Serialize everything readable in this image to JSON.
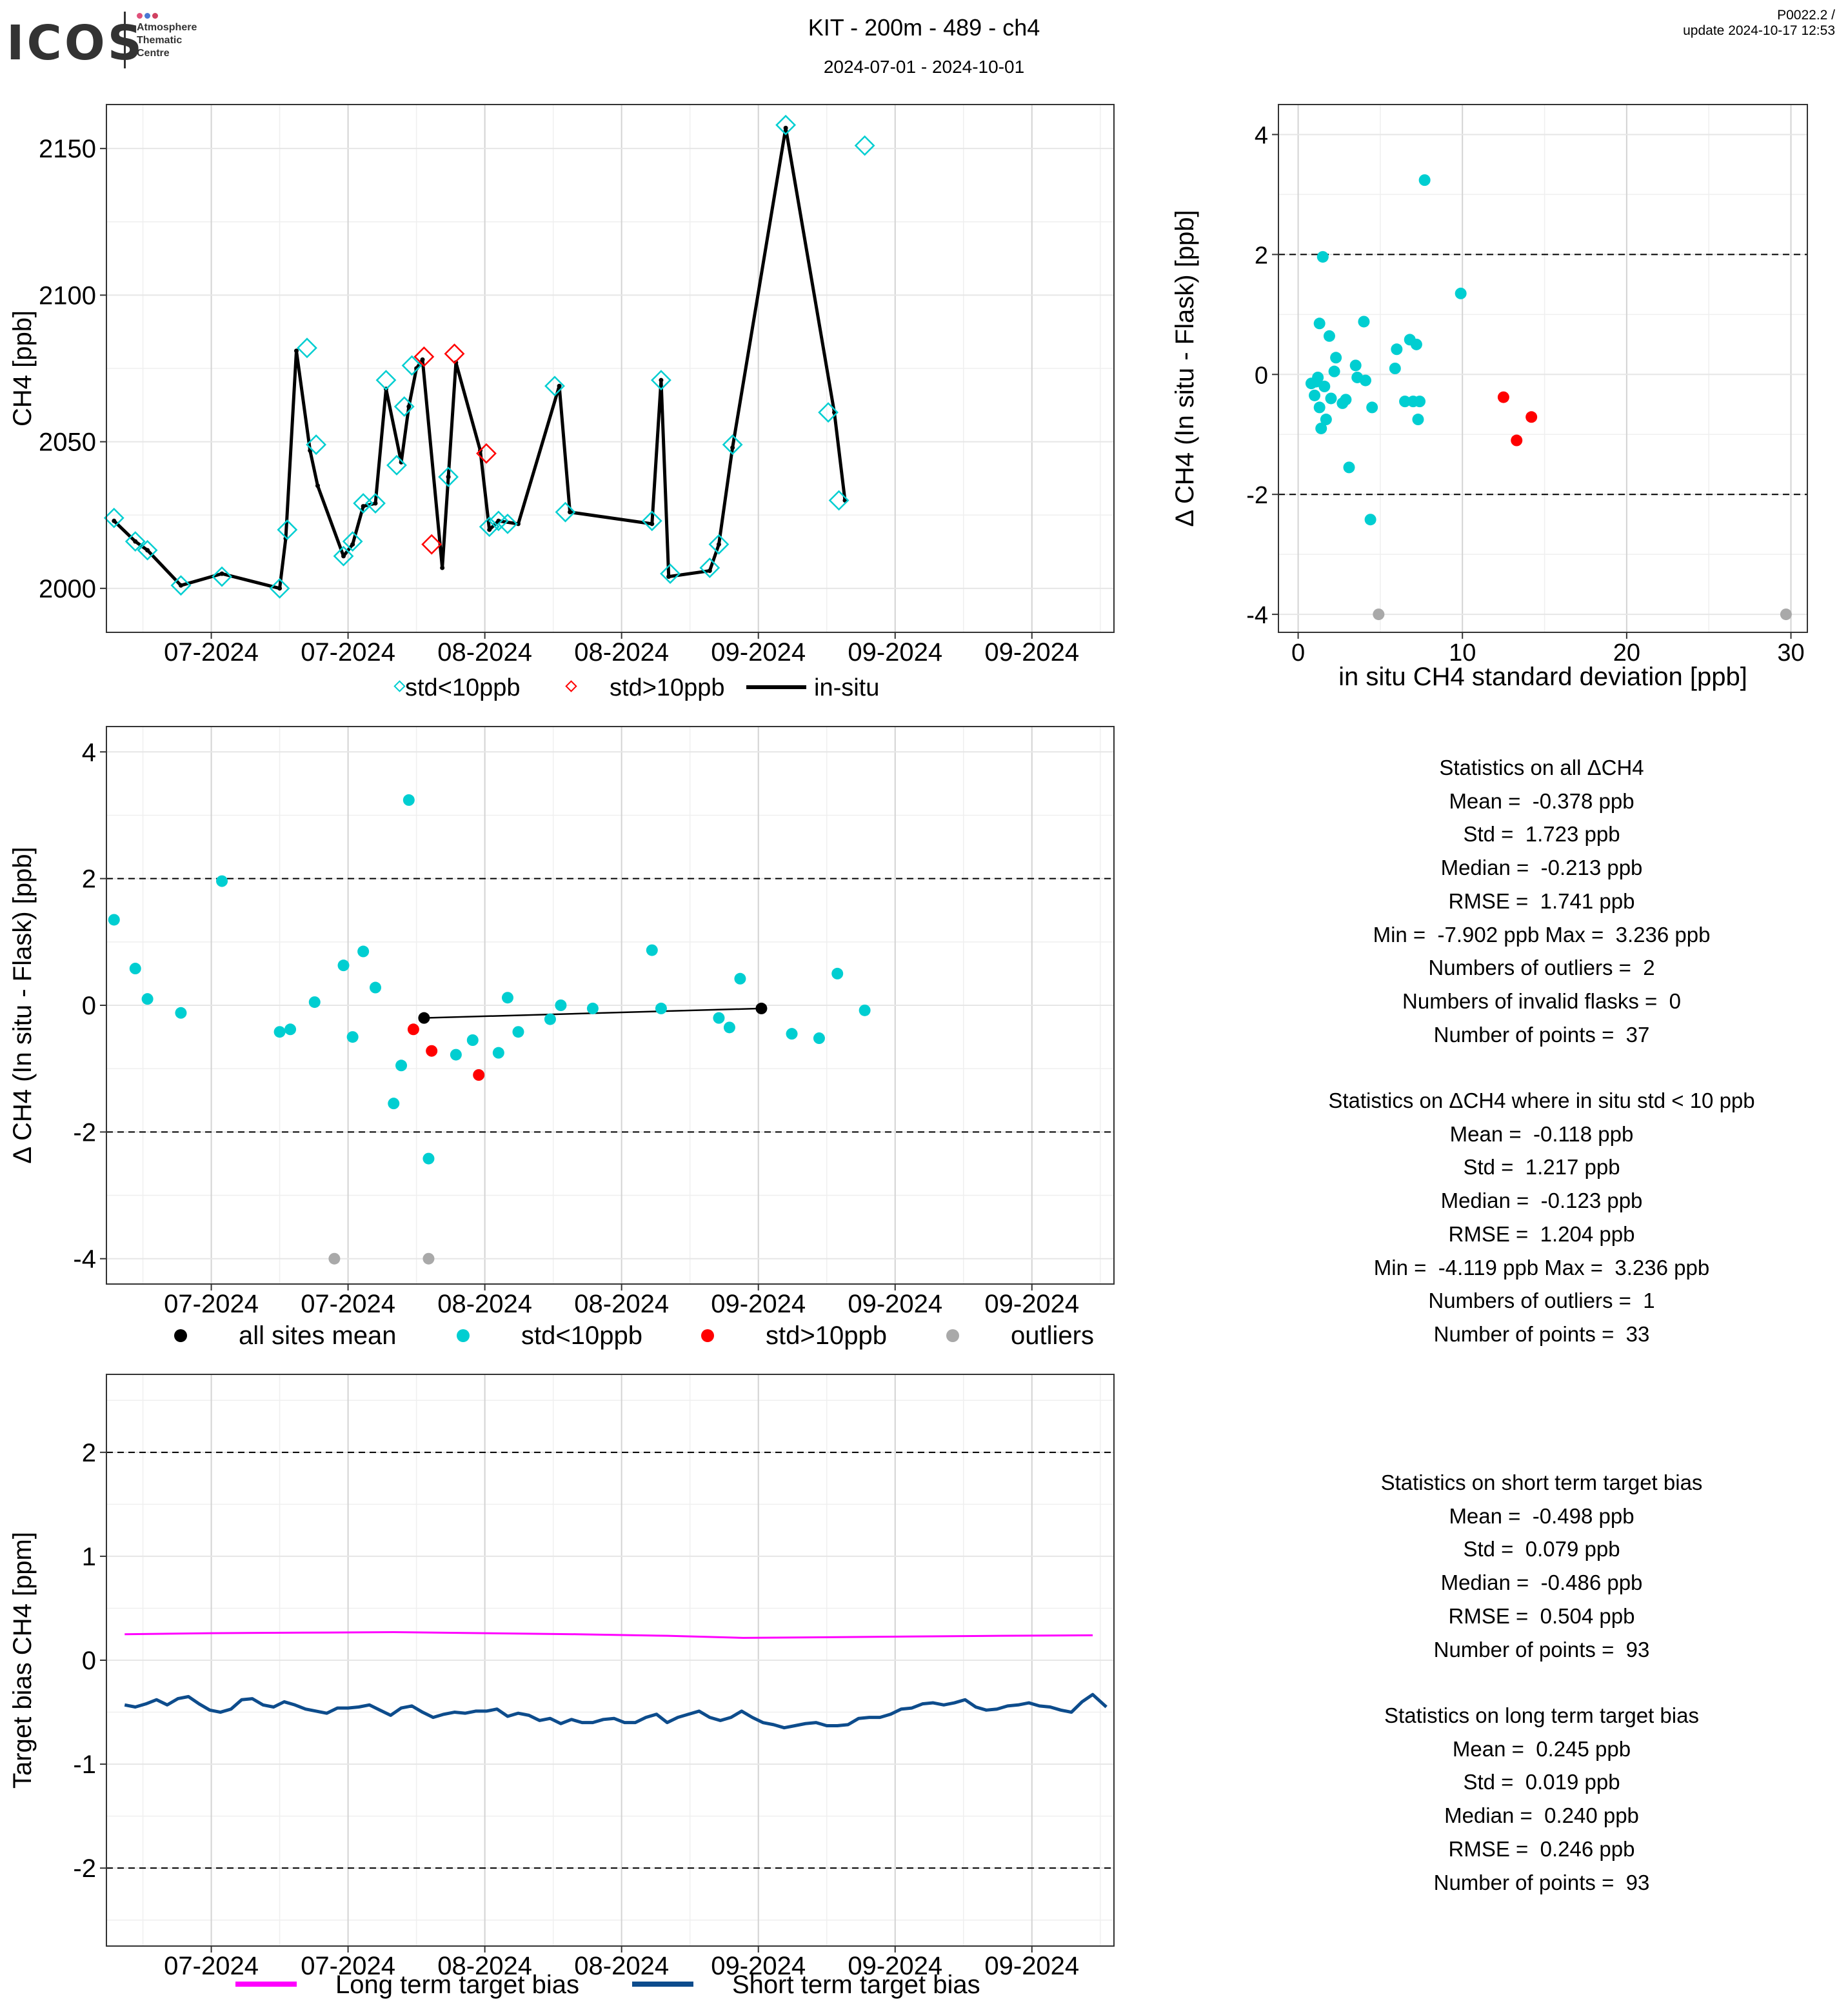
{
  "header": {
    "logo_word": "ICOS",
    "logo_lines": [
      "Atmosphere",
      "Thematic",
      "Centre"
    ],
    "title": "KIT - 200m - 489 - ch4",
    "subtitle": "2024-07-01 - 2024-10-01",
    "version_line1": "P0022.2 /",
    "version_line2": "update  2024-10-17 12:53"
  },
  "colors": {
    "std_lt10": "#00CED1",
    "std_gt10": "#FF0000",
    "outlier": "#A9A9A9",
    "mean": "#000000",
    "long_term": "#FF00FF",
    "short_term": "#0D4C8C",
    "insitu": "#000000"
  },
  "time_axis_labels": [
    "07-2024",
    "07-2024",
    "08-2024",
    "08-2024",
    "09-2024",
    "09-2024",
    "09-2024"
  ],
  "time_axis_labels_bottom": [
    "07-2024",
    "07-2024",
    "08-2024",
    "08-2024",
    "09-2024",
    "09-2024",
    "09-2024"
  ],
  "chart_data": [
    {
      "type": "line",
      "ylabel": "CH4 [ppb]",
      "ylim": [
        1985,
        2165
      ],
      "yticks": [
        2000,
        2050,
        2100,
        2150
      ],
      "x_unit": "days since 2024-07-01",
      "xlim": [
        3.1,
        69.4
      ],
      "grid": true,
      "legend_position": "bottom",
      "legend": [
        "std<10ppb",
        "std>10ppb",
        "in-situ"
      ],
      "series": [
        {
          "name": "in-situ",
          "x": [
            3.6,
            5.0,
            5.8,
            8.0,
            10.7,
            14.5,
            14.9,
            15.6,
            16.5,
            17.0,
            18.7,
            19.3,
            20.0,
            20.8,
            21.5,
            22.5,
            23.0,
            23.5,
            23.9,
            25.2,
            25.6,
            26.1,
            27.7,
            28.3,
            28.9,
            30.2,
            32.9,
            33.6,
            39.0,
            39.6,
            40.1,
            42.8,
            43.4,
            44.3,
            47.8,
            51.0,
            51.7
          ],
          "y": [
            2023,
            2016,
            2013,
            2001,
            2005,
            2000,
            2017,
            2081,
            2047,
            2035,
            2011,
            2015,
            2028,
            2029,
            2068,
            2043,
            2062,
            2075,
            2078,
            2007,
            2038,
            2077,
            2047,
            2020,
            2023,
            2022,
            2069,
            2026,
            2022,
            2071,
            2004,
            2006,
            2015,
            2048,
            2157,
            2060,
            2030
          ]
        },
        {
          "name": "std<10ppb",
          "x": [
            3.6,
            5.0,
            5.8,
            8.0,
            10.7,
            14.5,
            15.0,
            16.3,
            16.9,
            18.7,
            19.3,
            20.0,
            20.8,
            21.5,
            22.2,
            22.7,
            23.2,
            25.6,
            28.3,
            28.9,
            29.5,
            32.6,
            33.3,
            39.0,
            39.6,
            40.2,
            42.8,
            43.4,
            44.3,
            47.8,
            50.6,
            51.3,
            53.0
          ],
          "y": [
            2024,
            2016,
            2013,
            2001,
            2004,
            2000,
            2020,
            2082,
            2049,
            2011,
            2016,
            2029,
            2029,
            2071,
            2042,
            2062,
            2076,
            2038,
            2021,
            2023,
            2022,
            2069,
            2026,
            2023,
            2071,
            2005,
            2007,
            2015,
            2049,
            2158,
            2060,
            2030,
            2151
          ]
        },
        {
          "name": "std>10ppb",
          "x": [
            24.0,
            24.5,
            26.0,
            28.1
          ],
          "y": [
            2079,
            2015,
            2080,
            2046
          ]
        }
      ]
    },
    {
      "type": "scatter",
      "xlabel": "in situ CH4 standard deviation [ppb]",
      "ylabel": "Δ CH4 (In situ - Flask) [ppb]",
      "xlim": [
        -1.2,
        31
      ],
      "ylim": [
        -4.3,
        4.5
      ],
      "xticks": [
        0,
        10,
        20,
        30
      ],
      "yticks": [
        -4,
        -2,
        0,
        2,
        4
      ],
      "reference_lines": [
        -2,
        2
      ],
      "grid": true,
      "series": [
        {
          "name": "std<10ppb",
          "x": [
            0.8,
            1.0,
            1.1,
            1.2,
            1.3,
            1.3,
            1.4,
            1.5,
            1.6,
            1.7,
            1.9,
            2.0,
            2.2,
            2.3,
            2.7,
            2.9,
            3.1,
            3.5,
            3.6,
            4.0,
            4.1,
            4.4,
            4.5,
            5.9,
            6.0,
            6.5,
            6.8,
            7.0,
            7.2,
            7.3,
            7.4,
            7.7,
            9.9
          ],
          "y": [
            -0.15,
            -0.35,
            -0.12,
            -0.05,
            -0.55,
            0.85,
            -0.9,
            1.96,
            -0.2,
            -0.75,
            0.64,
            -0.4,
            0.05,
            0.28,
            -0.48,
            -0.42,
            -1.55,
            0.15,
            -0.05,
            0.88,
            -0.1,
            -2.42,
            -0.55,
            0.1,
            0.42,
            -0.45,
            0.58,
            -0.45,
            0.5,
            -0.75,
            -0.45,
            3.24,
            1.35
          ]
        },
        {
          "name": "std>10ppb",
          "x": [
            12.5,
            13.3,
            14.2
          ],
          "y": [
            -0.38,
            -1.1,
            -0.71
          ]
        },
        {
          "name": "outliers",
          "x": [
            4.9,
            29.7
          ],
          "y": [
            -4.0,
            -4.0
          ]
        }
      ]
    },
    {
      "type": "scatter",
      "ylabel": "Δ CH4 (In situ - Flask) [ppb]",
      "ylim": [
        -4.4,
        4.4
      ],
      "yticks": [
        -4,
        -2,
        0,
        2,
        4
      ],
      "xlim": [
        3.1,
        69.4
      ],
      "reference_lines": [
        -2,
        2
      ],
      "grid": true,
      "legend_position": "bottom",
      "legend": [
        "all sites mean",
        "std<10ppb",
        "std>10ppb",
        "outliers"
      ],
      "series": [
        {
          "name": "std<10ppb",
          "x": [
            3.6,
            5.0,
            5.8,
            8.0,
            10.7,
            14.5,
            15.2,
            16.8,
            18.7,
            19.3,
            20.0,
            20.8,
            22.0,
            22.5,
            23.0,
            24.3,
            26.1,
            27.2,
            28.9,
            29.5,
            30.2,
            32.3,
            33.0,
            35.1,
            39.0,
            39.6,
            43.4,
            44.1,
            44.8,
            48.2,
            50.0,
            51.2,
            53.0
          ],
          "y": [
            1.35,
            0.58,
            0.1,
            -0.12,
            1.96,
            -0.42,
            -0.38,
            0.05,
            0.63,
            -0.5,
            0.85,
            0.28,
            -1.55,
            -0.95,
            3.24,
            -2.42,
            -0.78,
            -0.55,
            -0.75,
            0.12,
            -0.42,
            -0.22,
            0.0,
            -0.05,
            0.87,
            -0.05,
            -0.2,
            -0.35,
            0.42,
            -0.45,
            -0.52,
            0.5,
            -0.08
          ]
        },
        {
          "name": "std>10ppb",
          "x": [
            23.3,
            24.5,
            27.6
          ],
          "y": [
            -0.38,
            -0.72,
            -1.1
          ]
        },
        {
          "name": "outliers",
          "x": [
            18.1,
            24.3
          ],
          "y": [
            -4.0,
            -4.0
          ]
        },
        {
          "name": "all sites mean",
          "x": [
            24.0,
            46.2
          ],
          "y": [
            -0.2,
            -0.05
          ]
        }
      ]
    },
    {
      "type": "line",
      "ylabel": "Target bias CH4 [ppm]",
      "ylim": [
        -2.75,
        2.75
      ],
      "yticks": [
        -2,
        -1,
        0,
        1,
        2
      ],
      "xlim": [
        3.1,
        69.4
      ],
      "reference_lines": [
        -2,
        2
      ],
      "grid": true,
      "legend_position": "bottom",
      "legend": [
        "Long term target bias",
        "Short term target bias"
      ],
      "series": [
        {
          "name": "Long term target bias",
          "x": [
            4.3,
            10.0,
            16.0,
            22.0,
            28.0,
            34.0,
            40.0,
            45.0,
            50.0,
            56.0,
            62.0,
            68.0
          ],
          "y": [
            0.25,
            0.26,
            0.265,
            0.27,
            0.26,
            0.25,
            0.235,
            0.215,
            0.22,
            0.228,
            0.235,
            0.24
          ]
        },
        {
          "name": "Short term target bias",
          "x": [
            4.3,
            5.0,
            5.7,
            6.4,
            7.1,
            7.8,
            8.5,
            9.2,
            9.9,
            10.6,
            11.3,
            12.0,
            12.7,
            13.4,
            14.1,
            14.8,
            15.5,
            16.2,
            16.9,
            17.6,
            18.3,
            19.0,
            19.7,
            20.4,
            21.1,
            21.8,
            22.5,
            23.2,
            23.9,
            24.6,
            25.3,
            26.0,
            26.7,
            27.4,
            28.1,
            28.8,
            29.5,
            30.2,
            30.9,
            31.6,
            32.3,
            33.0,
            33.7,
            34.4,
            35.1,
            35.8,
            36.5,
            37.2,
            37.9,
            38.6,
            39.3,
            40.0,
            40.7,
            41.4,
            42.1,
            42.8,
            43.5,
            44.2,
            44.9,
            45.6,
            46.3,
            47.0,
            47.7,
            48.4,
            49.1,
            49.8,
            50.5,
            51.2,
            51.9,
            52.6,
            53.3,
            54.0,
            54.7,
            55.4,
            56.1,
            56.8,
            57.5,
            58.2,
            58.9,
            59.6,
            60.3,
            61.0,
            61.7,
            62.4,
            63.1,
            63.8,
            64.5,
            65.2,
            65.9,
            66.6,
            67.3,
            68.0,
            68.9
          ],
          "y": [
            -0.43,
            -0.45,
            -0.42,
            -0.38,
            -0.43,
            -0.37,
            -0.35,
            -0.42,
            -0.48,
            -0.5,
            -0.47,
            -0.38,
            -0.37,
            -0.43,
            -0.45,
            -0.4,
            -0.43,
            -0.47,
            -0.49,
            -0.51,
            -0.46,
            -0.46,
            -0.45,
            -0.43,
            -0.48,
            -0.53,
            -0.46,
            -0.44,
            -0.5,
            -0.55,
            -0.52,
            -0.5,
            -0.51,
            -0.49,
            -0.49,
            -0.47,
            -0.54,
            -0.51,
            -0.53,
            -0.58,
            -0.56,
            -0.61,
            -0.57,
            -0.6,
            -0.6,
            -0.57,
            -0.56,
            -0.6,
            -0.6,
            -0.55,
            -0.52,
            -0.6,
            -0.55,
            -0.52,
            -0.49,
            -0.55,
            -0.58,
            -0.55,
            -0.49,
            -0.55,
            -0.6,
            -0.62,
            -0.65,
            -0.63,
            -0.61,
            -0.6,
            -0.63,
            -0.63,
            -0.62,
            -0.56,
            -0.55,
            -0.55,
            -0.52,
            -0.47,
            -0.46,
            -0.42,
            -0.41,
            -0.43,
            -0.41,
            -0.38,
            -0.45,
            -0.48,
            -0.47,
            -0.44,
            -0.43,
            -0.41,
            -0.44,
            -0.45,
            -0.48,
            -0.5,
            -0.4,
            -0.33,
            -0.45
          ]
        }
      ]
    }
  ],
  "stats_all": {
    "heading": "Statistics on all ΔCH4",
    "mean": "Mean =  -0.378 ppb",
    "std": "Std =  1.723 ppb",
    "median": "Median =  -0.213 ppb",
    "rmse": "RMSE =  1.741 ppb",
    "minmax": "Min =  -7.902 ppb Max =  3.236 ppb",
    "outliers": "Numbers of outliers =  2",
    "invalid": "Numbers of invalid flasks =  0",
    "points": "Number of points =  37"
  },
  "stats_std10": {
    "heading": "Statistics on ΔCH4 where in situ std < 10 ppb",
    "mean": "Mean =  -0.118 ppb",
    "std": "Std =  1.217 ppb",
    "median": "Median =  -0.123 ppb",
    "rmse": "RMSE =  1.204 ppb",
    "minmax": "Min =  -4.119 ppb Max =  3.236 ppb",
    "outliers": "Numbers of outliers =  1",
    "points": "Number of points =  33"
  },
  "stats_short": {
    "heading": "Statistics on short term target bias",
    "mean": "Mean =  -0.498 ppb",
    "std": "Std =  0.079 ppb",
    "median": "Median =  -0.486 ppb",
    "rmse": "RMSE =  0.504 ppb",
    "points": "Number of points =  93"
  },
  "stats_long": {
    "heading": "Statistics on long term target bias",
    "mean": "Mean =  0.245 ppb",
    "std": "Std =  0.019 ppb",
    "median": "Median =  0.240 ppb",
    "rmse": "RMSE =  0.246 ppb",
    "points": "Number of points =  93"
  }
}
